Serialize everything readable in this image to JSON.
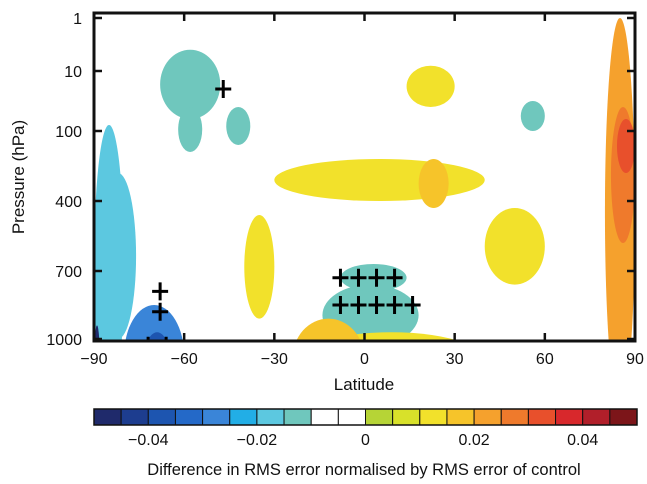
{
  "chart_data": {
    "type": "heatmap",
    "title": "",
    "xlabel": "Latitude",
    "ylabel": "Pressure (hPa)",
    "x_range": [
      -90,
      90
    ],
    "x_ticks": [
      -90,
      -60,
      -30,
      0,
      30,
      60,
      90
    ],
    "x_tick_labels": [
      "−90",
      "−60",
      "−30",
      "0",
      "30",
      "60",
      "90"
    ],
    "y_ticks": [
      {
        "value": 1,
        "label": "1"
      },
      {
        "value": 10,
        "label": "10"
      },
      {
        "value": 100,
        "label": "100"
      },
      {
        "value": 400,
        "label": "400"
      },
      {
        "value": 700,
        "label": "700"
      },
      {
        "value": 1000,
        "label": "1000"
      }
    ],
    "y_scale": "pressure (inverted, non-linear)",
    "grid": false,
    "colorbar": {
      "label": "Difference in RMS error normalised by RMS error of control",
      "range": [
        -0.05,
        0.05
      ],
      "step": 0.005,
      "ticks": [
        -0.04,
        -0.02,
        0,
        0.02,
        0.04
      ],
      "tick_labels": [
        "−0.04",
        "−0.02",
        "0",
        "0.02",
        "0.04"
      ],
      "colors": [
        "#1f2a6b",
        "#1d3d8f",
        "#1d55b0",
        "#2469c8",
        "#3a85d8",
        "#22aee6",
        "#5cc8e0",
        "#6fc7bd",
        "#ffffff",
        "#ffffff",
        "#b6d436",
        "#d8e12a",
        "#f2e12b",
        "#f6c42a",
        "#f5a12d",
        "#ef7a2c",
        "#e8502c",
        "#d8282c",
        "#b11f2a",
        "#7c1519"
      ]
    },
    "regions": [
      {
        "value": -0.02,
        "lat": [
          -90,
          -80
        ],
        "lev": [
          1.9,
          6
        ]
      },
      {
        "value": -0.02,
        "lat": [
          -88,
          -76
        ],
        "lev": [
          2.6,
          5
        ]
      },
      {
        "value": -0.015,
        "lat": [
          -68,
          -48
        ],
        "lev": [
          0.6,
          1.8
        ]
      },
      {
        "value": -0.015,
        "lat": [
          -62,
          -54
        ],
        "lev": [
          1.6,
          2.3
        ]
      },
      {
        "value": -0.015,
        "lat": [
          -14,
          18
        ],
        "lev": [
          4.2,
          5.1
        ]
      },
      {
        "value": -0.012,
        "lat": [
          -8,
          14
        ],
        "lev": [
          3.9,
          4.3
        ]
      },
      {
        "value": -0.012,
        "lat": [
          -46,
          -38
        ],
        "lev": [
          1.6,
          2.2
        ]
      },
      {
        "value": -0.012,
        "lat": [
          52,
          60
        ],
        "lev": [
          1.5,
          2.0
        ]
      },
      {
        "value": -0.03,
        "lat": [
          -80,
          -60
        ],
        "lev": [
          4.5,
          6
        ]
      },
      {
        "value": -0.04,
        "lat": [
          -74,
          -64
        ],
        "lev": [
          4.9,
          6
        ]
      },
      {
        "value": -0.05,
        "lat": [
          -90,
          -88
        ],
        "lev": [
          4.8,
          6
        ]
      },
      {
        "value": 0.01,
        "lat": [
          -30,
          40
        ],
        "lev": [
          2.4,
          3.0
        ]
      },
      {
        "value": 0.01,
        "lat": [
          -26,
          44
        ],
        "lev": [
          4.9,
          6
        ]
      },
      {
        "value": 0.01,
        "lat": [
          14,
          30
        ],
        "lev": [
          0.9,
          1.6
        ]
      },
      {
        "value": 0.01,
        "lat": [
          40,
          60
        ],
        "lev": [
          3.1,
          4.2
        ]
      },
      {
        "value": 0.01,
        "lat": [
          -40,
          -30
        ],
        "lev": [
          3.2,
          4.7
        ]
      },
      {
        "value": 0.015,
        "lat": [
          -24,
          0
        ],
        "lev": [
          4.7,
          5.9
        ]
      },
      {
        "value": 0.015,
        "lat": [
          18,
          28
        ],
        "lev": [
          2.4,
          3.1
        ]
      },
      {
        "value": 0.02,
        "lat": [
          80,
          90
        ],
        "lev": [
          0,
          6
        ]
      },
      {
        "value": 0.025,
        "lat": [
          82,
          90
        ],
        "lev": [
          1.6,
          3.6
        ]
      },
      {
        "value": 0.03,
        "lat": [
          84,
          90
        ],
        "lev": [
          1.8,
          2.6
        ]
      }
    ],
    "significance_marks": [
      [
        -72,
        5.9
      ],
      [
        -66,
        5.9
      ],
      [
        -60,
        5.9
      ],
      [
        -77,
        5.9
      ],
      [
        -72,
        5.5
      ],
      [
        -66,
        5.5
      ],
      [
        -60,
        5.5
      ],
      [
        -72,
        5.1
      ],
      [
        -66,
        5.1
      ],
      [
        -68,
        4.6
      ],
      [
        -68,
        4.3
      ],
      [
        -8,
        4.5
      ],
      [
        -2,
        4.5
      ],
      [
        4,
        4.5
      ],
      [
        10,
        4.5
      ],
      [
        16,
        4.5
      ],
      [
        -8,
        4.1
      ],
      [
        -2,
        4.1
      ],
      [
        4,
        4.1
      ],
      [
        10,
        4.1
      ],
      [
        -47,
        1.3
      ]
    ]
  }
}
